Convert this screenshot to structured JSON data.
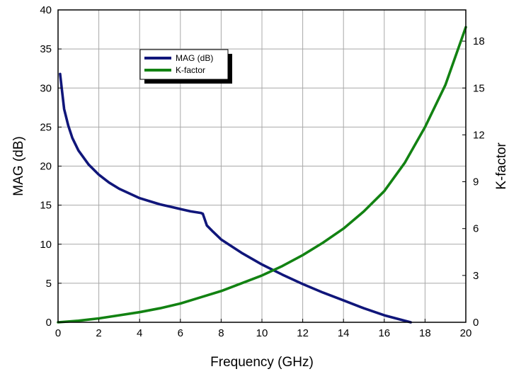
{
  "chart_data": {
    "type": "line",
    "xlabel": "Frequency (GHz)",
    "ylabel": "MAG (dB)",
    "y2label": "K-factor",
    "xlim": [
      0,
      20
    ],
    "ylim": [
      0,
      40
    ],
    "y2lim": [
      0,
      20
    ],
    "xticks": [
      "0",
      "2",
      "4",
      "6",
      "8",
      "10",
      "12",
      "14",
      "16",
      "18",
      "20"
    ],
    "yticks": [
      "0",
      "5",
      "10",
      "15",
      "20",
      "25",
      "30",
      "35",
      "40"
    ],
    "y2ticks": [
      "0",
      "3",
      "6",
      "9",
      "12",
      "15",
      "18"
    ],
    "grid": true,
    "legend": "upper-left",
    "series": [
      {
        "name": "MAG (dB)",
        "axis": "left",
        "color": "#10167a",
        "x": [
          0.1,
          0.2,
          0.3,
          0.5,
          0.7,
          1.0,
          1.5,
          2.0,
          2.5,
          3.0,
          3.5,
          4.0,
          4.5,
          5.0,
          5.5,
          6.0,
          6.5,
          7.0,
          7.1,
          7.3,
          7.6,
          8.0,
          9.0,
          10.0,
          11.0,
          12.0,
          13.0,
          14.0,
          15.0,
          16.0,
          17.0,
          17.3
        ],
        "y": [
          31.8,
          29.5,
          27.3,
          25.2,
          23.6,
          22.0,
          20.2,
          18.9,
          17.9,
          17.1,
          16.5,
          15.9,
          15.5,
          15.1,
          14.8,
          14.5,
          14.2,
          14.0,
          13.9,
          12.4,
          11.6,
          10.6,
          8.9,
          7.4,
          6.1,
          4.9,
          3.8,
          2.8,
          1.8,
          0.9,
          0.2,
          0.0
        ]
      },
      {
        "name": "K-factor",
        "axis": "right",
        "color": "#128212",
        "x": [
          0.0,
          1.0,
          2.0,
          3.0,
          4.0,
          5.0,
          6.0,
          7.0,
          8.0,
          9.0,
          10.0,
          11.0,
          12.0,
          13.0,
          14.0,
          15.0,
          16.0,
          17.0,
          18.0,
          19.0,
          20.0
        ],
        "y": [
          0.0,
          0.1,
          0.25,
          0.45,
          0.65,
          0.9,
          1.2,
          1.6,
          2.0,
          2.5,
          3.0,
          3.6,
          4.3,
          5.1,
          6.0,
          7.1,
          8.4,
          10.2,
          12.5,
          15.2,
          18.9
        ]
      }
    ]
  }
}
